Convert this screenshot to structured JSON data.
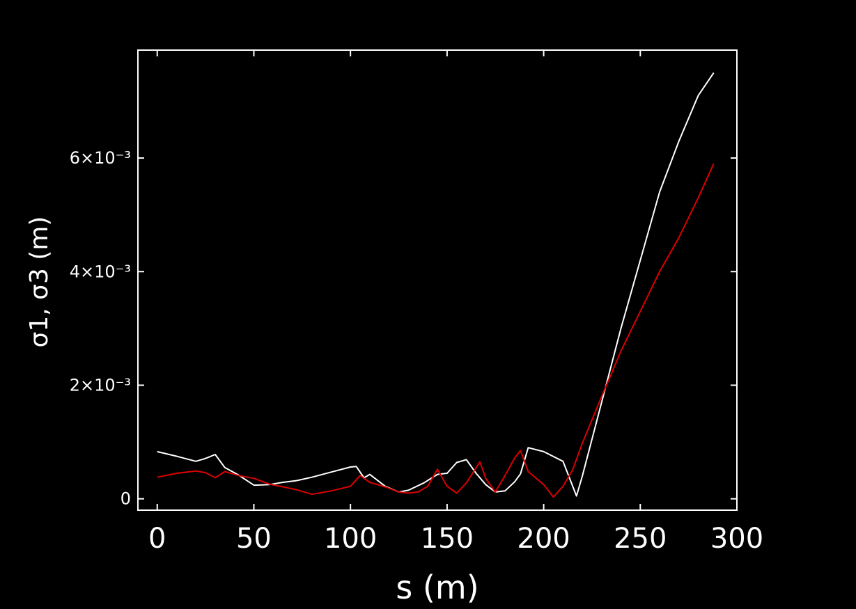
{
  "chart_data": {
    "type": "line",
    "xlabel": "s (m)",
    "ylabel": "σ1, σ3 (m)",
    "xlim": [
      -10,
      300
    ],
    "ylim": [
      -0.0002,
      0.0079
    ],
    "x_ticks": [
      0,
      50,
      100,
      150,
      200,
      250,
      300
    ],
    "x_tick_labels": [
      "0",
      "50",
      "100",
      "150",
      "200",
      "250",
      "300"
    ],
    "y_ticks": [
      0,
      0.002,
      0.004,
      0.006
    ],
    "y_tick_labels": [
      "0",
      "2×10⁻³",
      "4×10⁻³",
      "6×10⁻³"
    ],
    "background": "#000000",
    "axis_color": "#ffffff",
    "grid": false,
    "series": [
      {
        "color": "#ffffff",
        "x": [
          0,
          10,
          20,
          25,
          30,
          35,
          42,
          50,
          58,
          65,
          72,
          80,
          90,
          100,
          103,
          107,
          110,
          118,
          125,
          130,
          138,
          145,
          150,
          155,
          160,
          165,
          170,
          175,
          180,
          185,
          188,
          192,
          200,
          210,
          217,
          220,
          230,
          240,
          250,
          260,
          270,
          280,
          288
        ],
        "y": [
          0.00083,
          0.00075,
          0.00066,
          0.00071,
          0.00078,
          0.00055,
          0.00042,
          0.00024,
          0.00025,
          0.00029,
          0.00032,
          0.00038,
          0.00047,
          0.00056,
          0.00057,
          0.00037,
          0.00043,
          0.00022,
          0.00012,
          0.00015,
          0.00028,
          0.00043,
          0.00045,
          0.00064,
          0.00069,
          0.00045,
          0.00025,
          0.00012,
          0.00014,
          0.0003,
          0.00044,
          0.0009,
          0.00083,
          0.00066,
          5e-05,
          0.0004,
          0.0017,
          0.003,
          0.0042,
          0.0054,
          0.0063,
          0.0071,
          0.0075
        ]
      },
      {
        "color": "#dd0000",
        "x": [
          0,
          10,
          20,
          25,
          30,
          35,
          42,
          50,
          58,
          65,
          72,
          80,
          90,
          100,
          105,
          110,
          118,
          125,
          130,
          135,
          140,
          145,
          150,
          155,
          160,
          167,
          170,
          175,
          180,
          185,
          188,
          192,
          200,
          205,
          210,
          215,
          220,
          230,
          240,
          250,
          260,
          270,
          280,
          288
        ],
        "y": [
          0.00038,
          0.00045,
          0.00049,
          0.00046,
          0.00037,
          0.00048,
          0.00041,
          0.00036,
          0.00026,
          0.00021,
          0.00016,
          8e-05,
          0.00014,
          0.00022,
          0.00041,
          0.00029,
          0.00021,
          0.00012,
          0.0001,
          0.00012,
          0.00022,
          0.00052,
          0.00022,
          0.0001,
          0.00028,
          0.00065,
          0.00036,
          0.00012,
          0.00041,
          0.00072,
          0.00085,
          0.00048,
          0.00025,
          3e-05,
          0.00022,
          0.00051,
          0.00098,
          0.0018,
          0.0026,
          0.0033,
          0.004,
          0.0046,
          0.0053,
          0.0059
        ]
      }
    ]
  }
}
